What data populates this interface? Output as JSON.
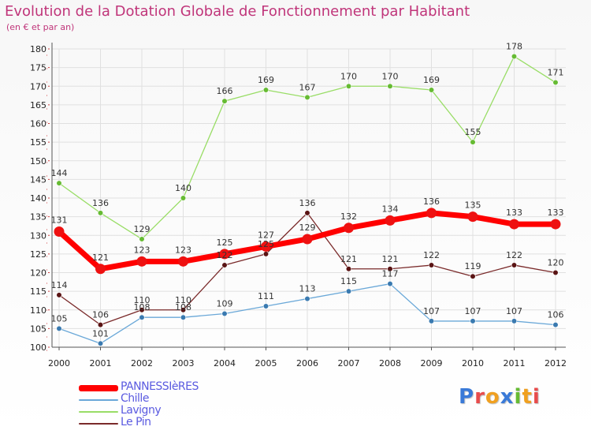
{
  "title": "Evolution de la Dotation Globale de Fonctionnement par Habitant",
  "subtitle": "(en € et par an)",
  "logo": {
    "text": "Proxiti",
    "letters": [
      "P",
      "r",
      "o",
      "x",
      "i",
      "t",
      "i"
    ]
  },
  "colors": {
    "title": "#c0357a",
    "axis": "#555555",
    "grid": "#e0e0e0",
    "tick_mark": "#d04040"
  },
  "chart_data": {
    "type": "line",
    "title": "Evolution de la Dotation Globale de Fonctionnement par Habitant",
    "subtitle": "(en € et par an)",
    "xlabel": "",
    "ylabel": "",
    "x": [
      "2000",
      "2001",
      "2002",
      "2003",
      "2004",
      "2005",
      "2006",
      "2007",
      "2008",
      "2009",
      "2010",
      "2011",
      "2012"
    ],
    "ylim": [
      100,
      180
    ],
    "yticks": [
      100,
      105,
      110,
      115,
      120,
      125,
      130,
      135,
      140,
      145,
      150,
      155,
      160,
      165,
      170,
      175,
      180
    ],
    "grid": true,
    "legend_position": "bottom-left",
    "series": [
      {
        "name": "PANNESSIèRES",
        "color": "#ff0000",
        "values": [
          131,
          121,
          123,
          123,
          125,
          127,
          129,
          132,
          134,
          136,
          135,
          133,
          133
        ],
        "labels": [
          "131",
          "121",
          "123",
          "123",
          "125",
          "127",
          "129",
          "132",
          "134",
          "136",
          "135",
          "133",
          "133"
        ]
      },
      {
        "name": "Chille",
        "color": "#6aa8d8",
        "values": [
          105,
          101,
          108,
          108,
          109,
          111,
          113,
          115,
          117,
          107,
          107,
          107,
          106
        ],
        "labels": [
          "105",
          "101",
          "108",
          "108",
          "109",
          "111",
          "113",
          "115",
          "117",
          "107",
          "107",
          "107",
          "106"
        ]
      },
      {
        "name": "Lavigny",
        "color": "#99dd66",
        "values": [
          144,
          136,
          129,
          140,
          166,
          169,
          167,
          170,
          170,
          169,
          155,
          178,
          171
        ],
        "labels": [
          "144",
          "136",
          "129",
          "140",
          "166",
          "169",
          "167",
          "170",
          "170",
          "169",
          "155",
          "178",
          "171"
        ]
      },
      {
        "name": "Le Pin",
        "color": "#7a2a2a",
        "values": [
          114,
          106,
          110,
          110,
          122,
          125,
          136,
          121,
          121,
          122,
          119,
          122,
          120
        ],
        "labels": [
          "114",
          "106",
          "110",
          "110",
          "122",
          "125",
          "136",
          "121",
          "121",
          "122",
          "119",
          "122",
          "120"
        ]
      }
    ]
  }
}
